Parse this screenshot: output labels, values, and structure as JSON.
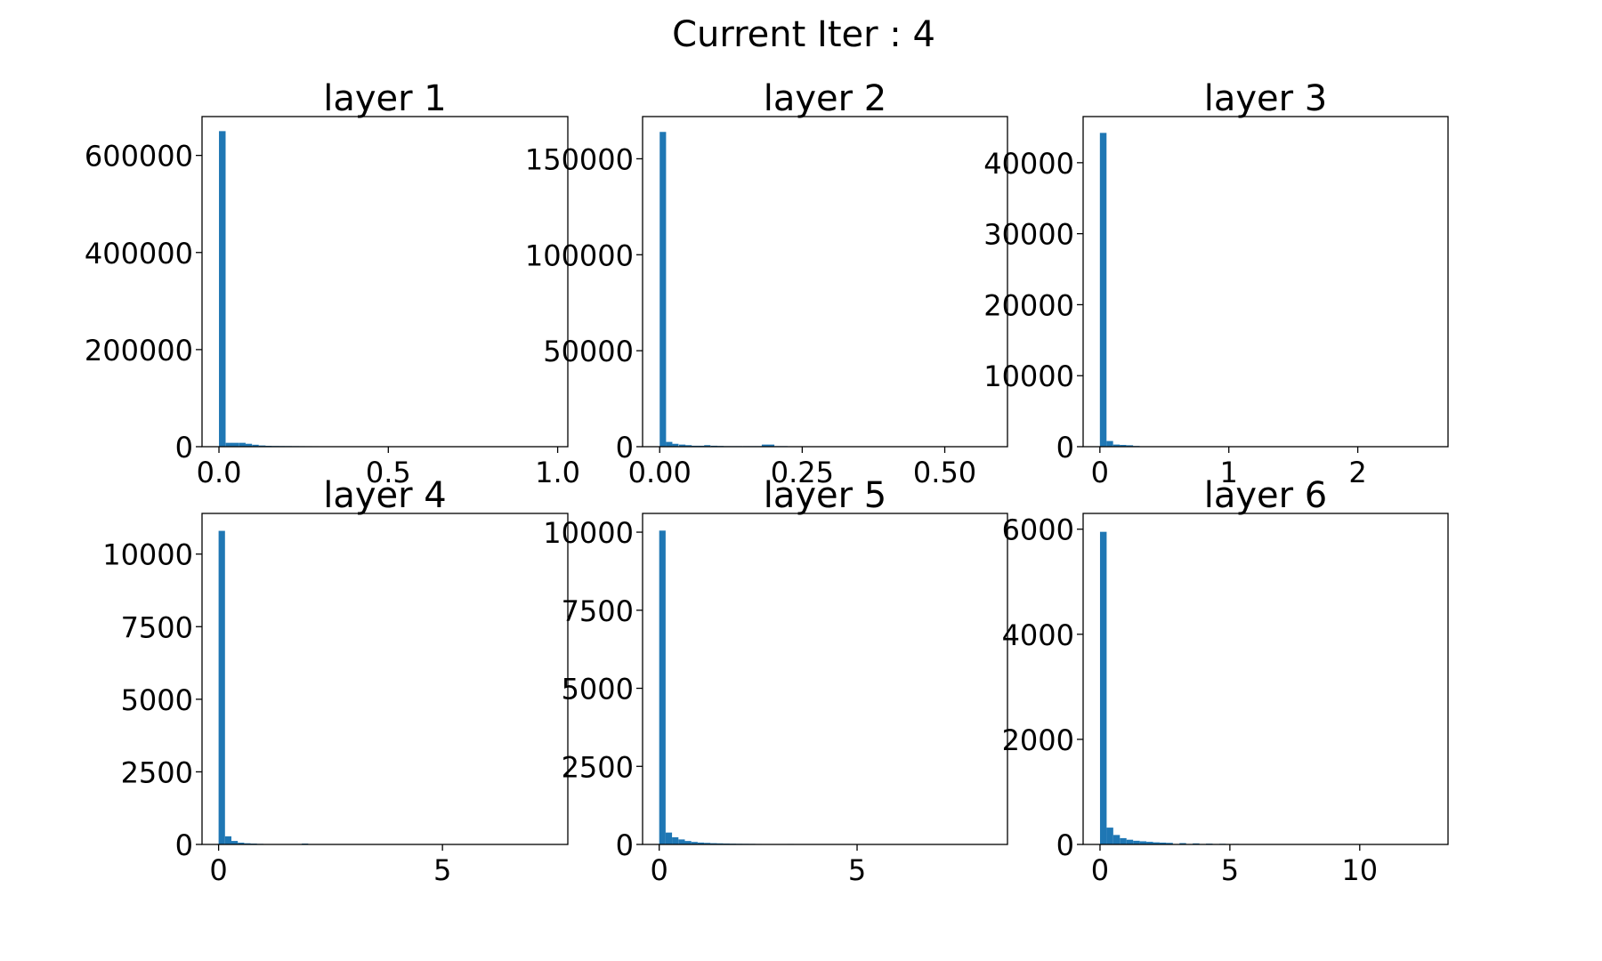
{
  "figure": {
    "suptitle": "Current Iter : 4",
    "bar_color": "#1f77b4"
  },
  "chart_data": [
    {
      "type": "bar",
      "title": "layer 1",
      "xlabel": "",
      "ylabel": "",
      "bin_width": 0.0196,
      "bins_x": [
        0.0,
        0.02,
        0.039,
        0.059,
        0.078,
        0.098,
        0.118,
        0.137,
        0.157,
        0.176,
        0.196,
        0.216,
        0.235,
        0.255,
        0.274,
        0.294,
        0.314,
        0.333,
        0.353,
        0.372,
        0.392,
        0.412,
        0.431,
        0.451,
        0.47,
        0.49
      ],
      "values": [
        650000,
        8000,
        8000,
        8000,
        6000,
        4000,
        2500,
        1800,
        1500,
        1400,
        1300,
        1200,
        1100,
        1000,
        950,
        900,
        850,
        800,
        750,
        700,
        650,
        600,
        550,
        500,
        450,
        400
      ],
      "xlim": [
        -0.05,
        1.03
      ],
      "ylim": [
        0,
        680000
      ],
      "xticks": [
        {
          "v": 0.0,
          "label": "0.0"
        },
        {
          "v": 0.5,
          "label": "0.5"
        },
        {
          "v": 1.0,
          "label": "1.0"
        }
      ],
      "yticks": [
        {
          "v": 0,
          "label": "0"
        },
        {
          "v": 200000,
          "label": "200000"
        },
        {
          "v": 400000,
          "label": "400000"
        },
        {
          "v": 600000,
          "label": "600000"
        }
      ]
    },
    {
      "type": "bar",
      "title": "layer 2",
      "xlabel": "",
      "ylabel": "",
      "bin_width": 0.0112,
      "bins_x": [
        0.0,
        0.011,
        0.022,
        0.034,
        0.045,
        0.056,
        0.067,
        0.078,
        0.09,
        0.101,
        0.112,
        0.123,
        0.134,
        0.146,
        0.157,
        0.168,
        0.179,
        0.19,
        0.202,
        0.213,
        0.224,
        0.235,
        0.246,
        0.258
      ],
      "values": [
        164000,
        2500,
        1500,
        1100,
        800,
        500,
        500,
        800,
        500,
        400,
        300,
        300,
        300,
        300,
        300,
        300,
        1100,
        1100,
        300,
        300,
        200,
        200,
        200,
        100
      ],
      "xlim": [
        -0.03,
        0.61
      ],
      "ylim": [
        0,
        172000
      ],
      "xticks": [
        {
          "v": 0.0,
          "label": "0.00"
        },
        {
          "v": 0.25,
          "label": "0.25"
        },
        {
          "v": 0.5,
          "label": "0.50"
        }
      ],
      "yticks": [
        {
          "v": 0,
          "label": "0"
        },
        {
          "v": 50000,
          "label": "50000"
        },
        {
          "v": 100000,
          "label": "100000"
        },
        {
          "v": 150000,
          "label": "150000"
        }
      ]
    },
    {
      "type": "bar",
      "title": "layer 3",
      "xlabel": "",
      "ylabel": "",
      "bin_width": 0.0514,
      "bins_x": [
        0.0,
        0.051,
        0.103,
        0.154,
        0.206,
        0.257,
        0.308
      ],
      "values": [
        44200,
        800,
        300,
        250,
        200,
        100,
        50
      ],
      "xlim": [
        -0.13,
        2.7
      ],
      "ylim": [
        0,
        46500
      ],
      "xticks": [
        {
          "v": 0,
          "label": "0"
        },
        {
          "v": 1,
          "label": "1"
        },
        {
          "v": 2,
          "label": "2"
        }
      ],
      "yticks": [
        {
          "v": 0,
          "label": "0"
        },
        {
          "v": 10000,
          "label": "10000"
        },
        {
          "v": 20000,
          "label": "20000"
        },
        {
          "v": 30000,
          "label": "30000"
        },
        {
          "v": 40000,
          "label": "40000"
        }
      ]
    },
    {
      "type": "bar",
      "title": "layer 4",
      "xlabel": "",
      "ylabel": "",
      "bin_width": 0.143,
      "bins_x": [
        0.0,
        0.143,
        0.286,
        0.429,
        0.572,
        0.715,
        0.858,
        1.001,
        1.144,
        1.287,
        1.859
      ],
      "values": [
        10800,
        280,
        120,
        60,
        40,
        30,
        20,
        15,
        10,
        8,
        30
      ],
      "xlim": [
        -0.37,
        7.8
      ],
      "ylim": [
        0,
        11400
      ],
      "xticks": [
        {
          "v": 0,
          "label": "0"
        },
        {
          "v": 5,
          "label": "5"
        }
      ],
      "yticks": [
        {
          "v": 0,
          "label": "0"
        },
        {
          "v": 2500,
          "label": "2500"
        },
        {
          "v": 5000,
          "label": "5000"
        },
        {
          "v": 7500,
          "label": "7500"
        },
        {
          "v": 10000,
          "label": "10000"
        }
      ]
    },
    {
      "type": "bar",
      "title": "layer 5",
      "xlabel": "",
      "ylabel": "",
      "bin_width": 0.162,
      "bins_x": [
        0.0,
        0.162,
        0.324,
        0.486,
        0.648,
        0.81,
        0.972,
        1.134,
        1.296,
        1.458,
        1.62,
        1.782,
        1.944,
        2.106,
        2.268,
        2.43,
        2.592,
        2.754,
        3.24,
        3.564
      ],
      "values": [
        10050,
        380,
        230,
        160,
        110,
        80,
        60,
        50,
        40,
        35,
        30,
        25,
        22,
        20,
        18,
        15,
        12,
        10,
        15,
        12
      ],
      "xlim": [
        -0.42,
        8.8
      ],
      "ylim": [
        0,
        10600
      ],
      "xticks": [
        {
          "v": 0,
          "label": "0"
        },
        {
          "v": 5,
          "label": "5"
        }
      ],
      "yticks": [
        {
          "v": 0,
          "label": "0"
        },
        {
          "v": 2500,
          "label": "2500"
        },
        {
          "v": 5000,
          "label": "5000"
        },
        {
          "v": 7500,
          "label": "7500"
        },
        {
          "v": 10000,
          "label": "10000"
        }
      ]
    },
    {
      "type": "bar",
      "title": "layer 6",
      "xlabel": "",
      "ylabel": "",
      "bin_width": 0.255,
      "bins_x": [
        0.0,
        0.255,
        0.51,
        0.765,
        1.02,
        1.275,
        1.53,
        1.785,
        2.04,
        2.295,
        2.55,
        3.06,
        3.57,
        4.08,
        4.59,
        5.1,
        5.61,
        6.12,
        7.14
      ],
      "values": [
        5950,
        320,
        180,
        120,
        90,
        70,
        60,
        50,
        40,
        35,
        30,
        25,
        20,
        15,
        12,
        10,
        8,
        8,
        6
      ],
      "xlim": [
        -0.65,
        13.4
      ],
      "ylim": [
        0,
        6300
      ],
      "xticks": [
        {
          "v": 0,
          "label": "0"
        },
        {
          "v": 5,
          "label": "5"
        },
        {
          "v": 10,
          "label": "10"
        }
      ],
      "yticks": [
        {
          "v": 0,
          "label": "0"
        },
        {
          "v": 2000,
          "label": "2000"
        },
        {
          "v": 4000,
          "label": "4000"
        },
        {
          "v": 6000,
          "label": "6000"
        }
      ]
    }
  ]
}
